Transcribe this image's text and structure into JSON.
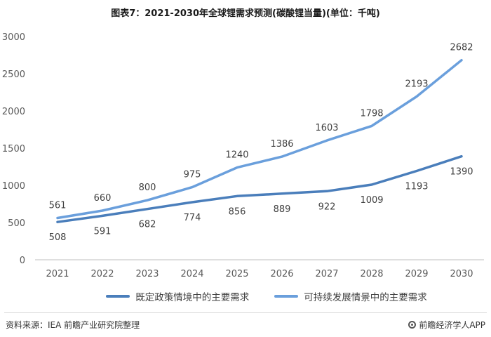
{
  "chart_data": {
    "type": "line",
    "title": "图表7：2021-2030年全球锂需求预测(碳酸锂当量)(单位：千吨)",
    "categories": [
      "2021",
      "2022",
      "2023",
      "2024",
      "2025",
      "2026",
      "2027",
      "2028",
      "2029",
      "2030"
    ],
    "series": [
      {
        "name": "既定政策情境中的主要需求",
        "values": [
          508,
          591,
          682,
          774,
          856,
          889,
          922,
          1009,
          1193,
          1390
        ],
        "color": "#4a7ebb"
      },
      {
        "name": "可持续发展情景中的主要需求",
        "values": [
          561,
          660,
          800,
          975,
          1240,
          1386,
          1603,
          1798,
          2193,
          2682
        ],
        "color": "#6a9fdc"
      }
    ],
    "ylim": [
      0,
      3000
    ],
    "yticks": [
      0,
      500,
      1000,
      1500,
      2000,
      2500,
      3000
    ],
    "xlabel": "",
    "ylabel": "",
    "grid": false,
    "legend_position": "bottom"
  },
  "footer": {
    "source": "资料来源：IEA 前瞻产业研究院整理",
    "brand": "前瞻经济学人APP"
  },
  "icons": {
    "brand_icon": "brand-logo-icon"
  }
}
